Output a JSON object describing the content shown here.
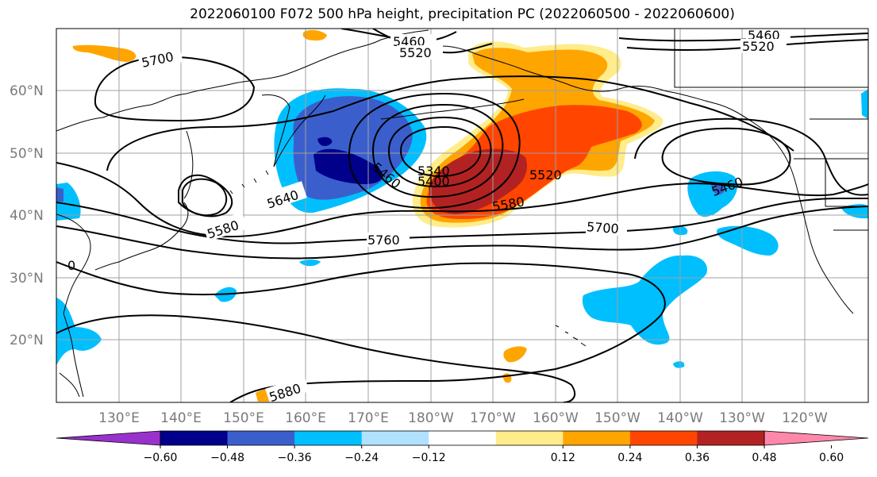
{
  "title": "2022060100 F072 500 hPa height, precipitation PC (2022060500 - 2022060600)",
  "lat_labels": [
    "60°N",
    "50°N",
    "40°N",
    "30°N",
    "20°N"
  ],
  "lon_labels": [
    "130°E",
    "140°E",
    "150°E",
    "160°E",
    "170°E",
    "180°W",
    "170°W",
    "160°W",
    "150°W",
    "140°W",
    "130°W",
    "120°W"
  ],
  "contour_labels": [
    "5460",
    "5520",
    "5700",
    "5460",
    "5520",
    "5460",
    "5340",
    "5400",
    "5520",
    "5580",
    "5640",
    "5580",
    "5760",
    "5700",
    "5460",
    "5880",
    "0"
  ],
  "colorbar": {
    "colors": [
      "#9932cc",
      "#00008b",
      "#3a5fcd",
      "#00bfff",
      "#b0e2ff",
      "#ffffff",
      "#ffec8b",
      "#ffa500",
      "#ff4500",
      "#b22222",
      "#ff88aa"
    ],
    "tick_labels": [
      "−0.60",
      "−0.48",
      "−0.36",
      "−0.24",
      "−0.12",
      "0.12",
      "0.24",
      "0.36",
      "0.48",
      "0.60"
    ]
  },
  "fill_colors": {
    "dark_blue": "#00008b",
    "mid_blue": "#3a5fcd",
    "sky_blue": "#00bfff",
    "light_orange": "#ffec8b",
    "orange": "#ffa500",
    "red_orange": "#ff4500",
    "dark_red": "#b22222"
  }
}
